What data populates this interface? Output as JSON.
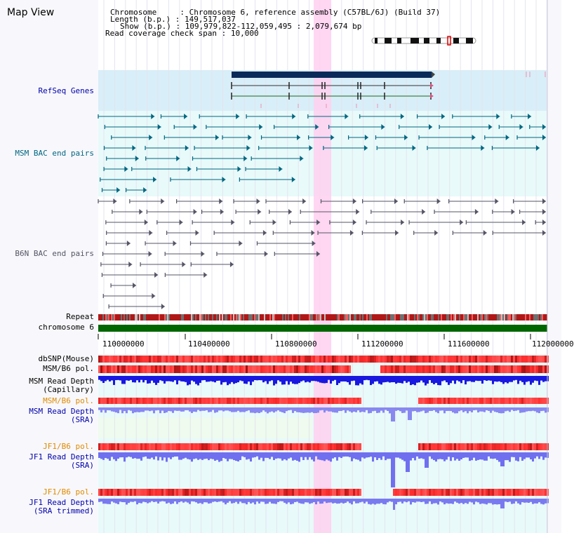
{
  "app": {
    "title": "Map View"
  },
  "info": {
    "chromosome_label": "Chromosome    ",
    "chromosome_value": "Chromosome 6, reference assembly (C57BL/6J) (Build 37)",
    "length_label": "Length (b.p.)",
    "length_value": "149,517,037",
    "show_label": "Show (b.p.)",
    "show_value": "109,979,822-112,059,495 : 2,079,674 bp",
    "coverage_label": "Read coverage check span",
    "coverage_value": "10,000"
  },
  "tracks": {
    "refseq": "RefSeq Genes",
    "msm_bac": "MSM BAC end pairs",
    "b6n_bac": "B6N BAC end pairs",
    "repeat": "Repeat",
    "chromosome": "chromosome 6",
    "dbsnp": "dbSNP(Mouse)",
    "msm_pol_1": "MSM/B6 pol.",
    "msm_read_depth_cap_1": "MSM Read Depth",
    "msm_read_depth_cap_2": "(Capillary)",
    "msm_pol_2": "MSM/B6 pol.",
    "msm_read_depth_sra_1": "MSM Read Depth",
    "msm_read_depth_sra_2": "(SRA)",
    "jf1_pol_1": "JF1/B6 pol.",
    "jf1_read_depth_sra_1": "JF1 Read Depth",
    "jf1_read_depth_sra_2": "(SRA)",
    "jf1_pol_2": "JF1/B6 pol.",
    "jf1_read_depth_trim_1": "JF1 Read Depth",
    "jf1_read_depth_trim_2": "(SRA trimmed)"
  },
  "axis": {
    "ticks": [
      "110000000",
      "110400000",
      "110800000",
      "111200000",
      "111600000",
      "112000000"
    ]
  },
  "colors": {
    "refseq_bg": "#d8eef8",
    "track_bg": "#e8fafa",
    "highlight": "#ffd0f0",
    "chromosome": "#006600",
    "msm_feature": "#006680",
    "b6n_feature": "#555566"
  }
}
